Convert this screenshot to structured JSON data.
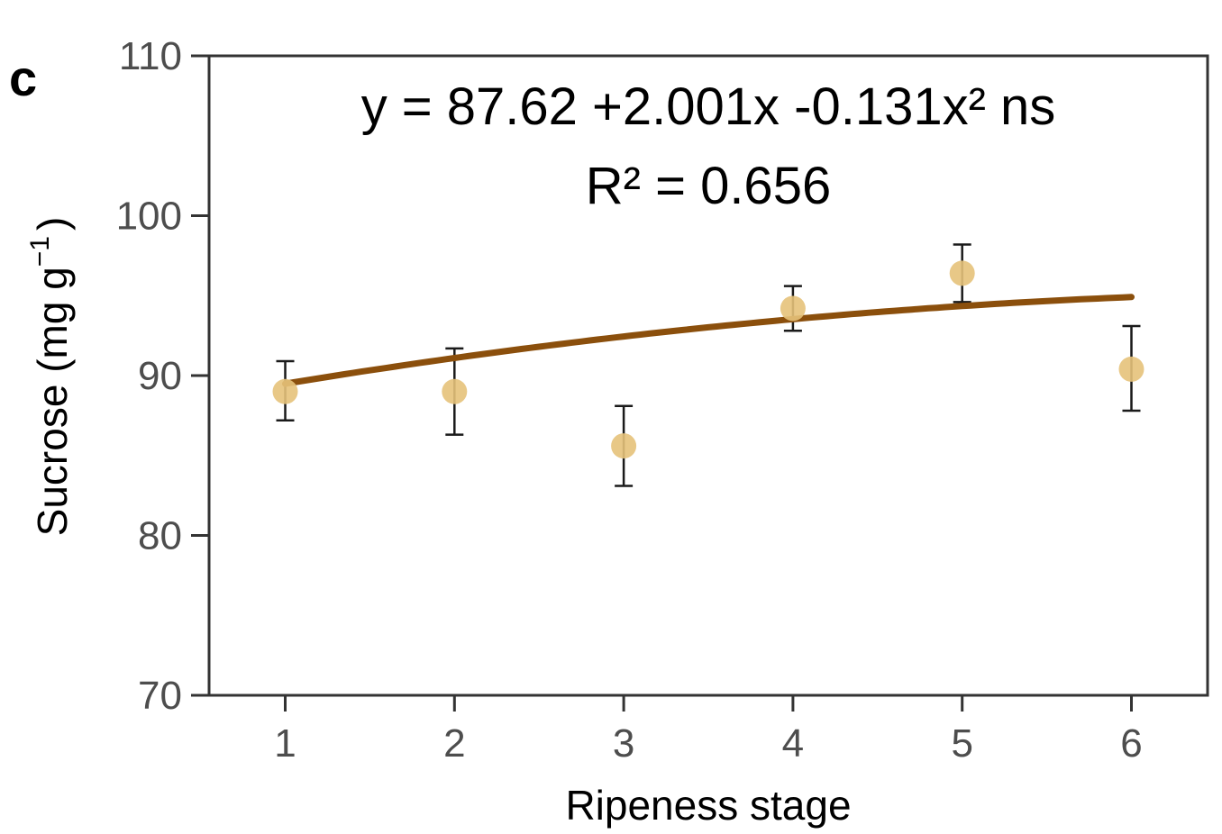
{
  "panel_label": "c",
  "chart_data": {
    "type": "scatter",
    "xlabel": "Ripeness stage",
    "ylabel_main": "Sucrose (mg g",
    "ylabel_sup": "−1",
    "ylabel_close": ")",
    "xlim": [
      0.55,
      6.45
    ],
    "ylim": [
      70,
      110
    ],
    "x_ticks": [
      1,
      2,
      3,
      4,
      5,
      6
    ],
    "y_ticks": [
      70,
      80,
      90,
      100,
      110
    ],
    "points": [
      {
        "x": 1,
        "y": 89.0,
        "err_low": 87.2,
        "err_high": 90.9
      },
      {
        "x": 2,
        "y": 89.0,
        "err_low": 86.3,
        "err_high": 91.7
      },
      {
        "x": 3,
        "y": 85.6,
        "err_low": 83.1,
        "err_high": 88.1
      },
      {
        "x": 4,
        "y": 94.2,
        "err_low": 92.8,
        "err_high": 95.6
      },
      {
        "x": 5,
        "y": 96.4,
        "err_low": 94.6,
        "err_high": 98.2
      },
      {
        "x": 6,
        "y": 90.4,
        "err_low": 87.8,
        "err_high": 93.1
      }
    ],
    "fit": {
      "intercept": 87.62,
      "b1": 2.001,
      "b2": -0.131,
      "x_range": [
        1,
        6
      ]
    },
    "annotation_equation": "y = 87.62 +2.001x -0.131x² ns",
    "annotation_r2": "R² = 0.656",
    "grid": false,
    "colors": {
      "points": "#e6c27a",
      "fit_line": "#8b4f0c",
      "error_bars": "#1a1a1a",
      "axes": "#333333"
    }
  }
}
